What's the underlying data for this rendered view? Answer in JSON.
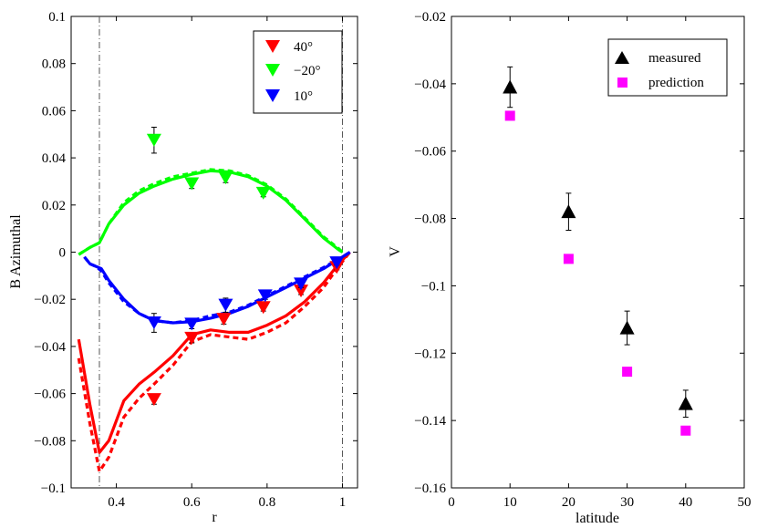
{
  "chart_data": [
    {
      "type": "line",
      "title": "",
      "xlabel": "r",
      "ylabel": "B Azimuthal",
      "xlim": [
        0.28,
        1.04
      ],
      "ylim": [
        -0.1,
        0.1
      ],
      "xticks": [
        0.4,
        0.6,
        0.8,
        1
      ],
      "xtick_labels": [
        "0.4",
        "0.6",
        "0.8",
        "1"
      ],
      "yticks": [
        -0.1,
        -0.08,
        -0.06,
        -0.04,
        -0.02,
        0,
        0.02,
        0.04,
        0.06,
        0.08,
        0.1
      ],
      "ytick_labels": [
        "−0.1",
        "−0.08",
        "−0.06",
        "−0.04",
        "−0.02",
        "0",
        "0.02",
        "0.04",
        "0.06",
        "0.08",
        "0.1"
      ],
      "vlines": [
        0.355,
        1.0
      ],
      "grid": false,
      "legend_position": "top-right",
      "series": [
        {
          "name": "40°",
          "color": "#ff0000",
          "marker": "triangle-down",
          "solid": {
            "x": [
              0.3,
              0.33,
              0.355,
              0.38,
              0.42,
              0.46,
              0.5,
              0.55,
              0.6,
              0.65,
              0.7,
              0.75,
              0.8,
              0.85,
              0.9,
              0.95,
              0.99,
              1.02
            ],
            "y": [
              -0.037,
              -0.065,
              -0.085,
              -0.08,
              -0.063,
              -0.056,
              -0.051,
              -0.044,
              -0.035,
              -0.033,
              -0.034,
              -0.034,
              -0.031,
              -0.027,
              -0.021,
              -0.013,
              -0.005,
              0
            ]
          },
          "dashed": {
            "x": [
              0.3,
              0.33,
              0.355,
              0.38,
              0.42,
              0.46,
              0.5,
              0.55,
              0.6,
              0.65,
              0.7,
              0.75,
              0.8,
              0.85,
              0.9,
              0.95,
              0.99,
              1.02
            ],
            "y": [
              -0.045,
              -0.073,
              -0.093,
              -0.087,
              -0.07,
              -0.062,
              -0.056,
              -0.048,
              -0.038,
              -0.035,
              -0.036,
              -0.037,
              -0.034,
              -0.03,
              -0.023,
              -0.015,
              -0.006,
              0
            ]
          },
          "points": [
            {
              "x": 0.5,
              "y": -0.0625,
              "err": 0.002
            },
            {
              "x": 0.6,
              "y": -0.0365,
              "err": 0.002
            },
            {
              "x": 0.685,
              "y": -0.0285,
              "err": 0.002
            },
            {
              "x": 0.79,
              "y": -0.0235,
              "err": 0.0015
            },
            {
              "x": 0.89,
              "y": -0.0165,
              "err": 0.0015
            },
            {
              "x": 0.985,
              "y": -0.0065,
              "err": 0.001
            }
          ]
        },
        {
          "name": "−20°",
          "color": "#00ff00",
          "marker": "triangle-down",
          "solid": {
            "x": [
              0.3,
              0.33,
              0.355,
              0.38,
              0.42,
              0.46,
              0.5,
              0.55,
              0.6,
              0.65,
              0.7,
              0.75,
              0.8,
              0.85,
              0.9,
              0.95,
              0.99,
              1.0
            ],
            "y": [
              -0.001,
              0.002,
              0.004,
              0.012,
              0.02,
              0.025,
              0.028,
              0.031,
              0.033,
              0.0345,
              0.034,
              0.032,
              0.028,
              0.022,
              0.014,
              0.006,
              0.001,
              0
            ]
          },
          "dashed": {
            "x": [
              0.3,
              0.33,
              0.355,
              0.38,
              0.42,
              0.46,
              0.5,
              0.55,
              0.6,
              0.65,
              0.7,
              0.75,
              0.8,
              0.85,
              0.9,
              0.95,
              0.99,
              1.0
            ],
            "y": [
              -0.001,
              0.002,
              0.004,
              0.012,
              0.021,
              0.026,
              0.029,
              0.032,
              0.0335,
              0.035,
              0.0345,
              0.0325,
              0.0285,
              0.0225,
              0.0145,
              0.0065,
              0.0015,
              0
            ]
          },
          "points": [
            {
              "x": 0.5,
              "y": 0.0475,
              "err": 0.0055
            },
            {
              "x": 0.6,
              "y": 0.029,
              "err": 0.002
            },
            {
              "x": 0.69,
              "y": 0.0315,
              "err": 0.002
            },
            {
              "x": 0.79,
              "y": 0.025,
              "err": 0.0015
            }
          ]
        },
        {
          "name": "10°",
          "color": "#0000ff",
          "marker": "triangle-down",
          "solid": {
            "x": [
              0.315,
              0.33,
              0.345,
              0.36,
              0.38,
              0.42,
              0.46,
              0.5,
              0.55,
              0.6,
              0.65,
              0.7,
              0.75,
              0.8,
              0.85,
              0.9,
              0.95,
              1.0,
              1.02
            ],
            "y": [
              -0.002,
              -0.005,
              -0.006,
              -0.007,
              -0.012,
              -0.02,
              -0.026,
              -0.029,
              -0.03,
              -0.0295,
              -0.028,
              -0.026,
              -0.023,
              -0.019,
              -0.015,
              -0.011,
              -0.007,
              -0.002,
              0
            ]
          },
          "dashed": {
            "x": [
              0.315,
              0.33,
              0.345,
              0.36,
              0.38,
              0.42,
              0.46,
              0.5,
              0.55,
              0.6,
              0.65,
              0.7,
              0.75,
              0.8,
              0.85,
              0.9,
              0.95,
              1.0,
              1.02
            ],
            "y": [
              -0.002,
              -0.005,
              -0.006,
              -0.008,
              -0.013,
              -0.021,
              -0.026,
              -0.029,
              -0.03,
              -0.029,
              -0.027,
              -0.0255,
              -0.0225,
              -0.0185,
              -0.0145,
              -0.0105,
              -0.0065,
              -0.002,
              0
            ]
          },
          "points": [
            {
              "x": 0.5,
              "y": -0.03,
              "err": 0.004
            },
            {
              "x": 0.6,
              "y": -0.0305,
              "err": 0.002
            },
            {
              "x": 0.69,
              "y": -0.0225,
              "err": 0.003
            },
            {
              "x": 0.795,
              "y": -0.0185,
              "err": 0.0015
            },
            {
              "x": 0.89,
              "y": -0.0135,
              "err": 0.0015
            },
            {
              "x": 0.985,
              "y": -0.0045,
              "err": 0.001
            }
          ]
        }
      ]
    },
    {
      "type": "scatter",
      "title": "",
      "xlabel": "latitude",
      "ylabel": "V",
      "xlim": [
        0,
        50
      ],
      "ylim": [
        -0.16,
        -0.02
      ],
      "xticks": [
        0,
        10,
        20,
        30,
        40,
        50
      ],
      "xtick_labels": [
        "0",
        "10",
        "20",
        "30",
        "40",
        "50"
      ],
      "yticks": [
        -0.16,
        -0.14,
        -0.12,
        -0.1,
        -0.08,
        -0.06,
        -0.04,
        -0.02
      ],
      "ytick_labels": [
        "−0.16",
        "−0.14",
        "−0.12",
        "−0.1",
        "−0.08",
        "−0.06",
        "−0.04",
        "−0.02"
      ],
      "grid": false,
      "legend_position": "top-right",
      "series": [
        {
          "name": "measured",
          "color": "#000000",
          "marker": "triangle-up",
          "points": [
            {
              "x": 10,
              "y": -0.041,
              "err": 0.006
            },
            {
              "x": 20,
              "y": -0.078,
              "err": 0.0055
            },
            {
              "x": 30,
              "y": -0.1125,
              "err": 0.005
            },
            {
              "x": 40,
              "y": -0.135,
              "err": 0.004
            }
          ]
        },
        {
          "name": "prediction",
          "color": "#ff00ff",
          "marker": "square",
          "points": [
            {
              "x": 10,
              "y": -0.0495
            },
            {
              "x": 20,
              "y": -0.092
            },
            {
              "x": 30,
              "y": -0.1255
            },
            {
              "x": 40,
              "y": -0.143
            }
          ]
        }
      ]
    }
  ]
}
